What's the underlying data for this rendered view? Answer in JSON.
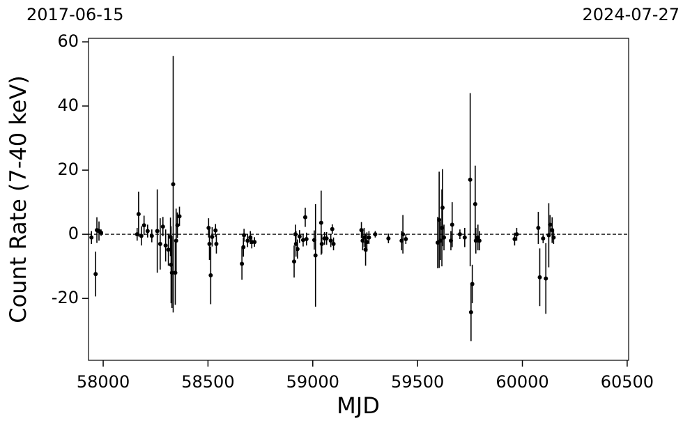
{
  "chart_data": {
    "type": "errorbar-scatter",
    "annotations": [
      "2017-06-15",
      "2024-07-27"
    ],
    "xlabel": "MJD",
    "ylabel": "Count Rate (7-40 keV)",
    "xlim": [
      57930,
      60507
    ],
    "ylim": [
      -39.3,
      61.1
    ],
    "xticks": [
      58000,
      58500,
      59000,
      59500,
      60000,
      60500
    ],
    "yticks": [
      -20,
      0,
      20,
      40,
      60
    ],
    "reference_line": 0,
    "series": [
      {
        "color": "#000000",
        "x": [
          57944,
          57964,
          57970,
          57980,
          57990,
          58169,
          58162,
          58182,
          58195,
          58212,
          58232,
          58258,
          58272,
          58285,
          58298,
          58311,
          58321,
          58324,
          58328,
          58334,
          58344,
          58348,
          58354,
          58364,
          58503,
          58507,
          58513,
          58520,
          58536,
          58540,
          58662,
          58669,
          58672,
          58689,
          58702,
          58709,
          58722,
          58911,
          58917,
          58920,
          58927,
          58937,
          58954,
          58964,
          58970,
          59007,
          59013,
          59040,
          59043,
          59056,
          59066,
          59086,
          59093,
          59099,
          59232,
          59238,
          59245,
          59252,
          59258,
          59268,
          59298,
          59361,
          59424,
          59430,
          59444,
          59596,
          59603,
          59609,
          59616,
          59619,
          59626,
          59659,
          59665,
          59702,
          59725,
          59751,
          59755,
          59761,
          59775,
          59778,
          59788,
          59795,
          59963,
          59973,
          60076,
          60083,
          60099,
          60112,
          60126,
          60132,
          60142,
          60149
        ],
        "values": [
          -1,
          -12.4,
          1.3,
          1,
          0.5,
          6.3,
          0,
          -0.5,
          2.8,
          1,
          -0.5,
          1,
          -3,
          2.4,
          -3.5,
          -4.8,
          -0.8,
          -9.5,
          -12,
          15.6,
          -12,
          -2,
          2.8,
          5.6,
          2,
          -3,
          -12.8,
          -0.8,
          1.2,
          -3,
          -9.2,
          -4,
          -0.3,
          -2,
          -1,
          -2.4,
          -2.4,
          -8.5,
          0,
          -3,
          -4.6,
          -0.7,
          -1.8,
          5.3,
          -1.5,
          -1.8,
          -6.6,
          3.6,
          -3,
          -1.3,
          -1.3,
          -2,
          1.6,
          -3,
          1.3,
          -2,
          -1,
          -4.8,
          -2.4,
          -1,
          0,
          -1.3,
          -2,
          0,
          -1.5,
          -2.6,
          4.5,
          -2,
          2,
          8.3,
          -1,
          -2,
          3,
          0,
          -1,
          17,
          -24.3,
          -15.5,
          9.4,
          -2,
          -1,
          -2,
          -1.5,
          0,
          2,
          -13.4,
          -1.3,
          -13.8,
          -0.3,
          3,
          1.3,
          -1
        ],
        "errors": [
          2,
          7,
          4,
          3,
          1,
          7,
          2,
          3,
          3,
          2,
          2,
          13,
          8,
          3,
          5,
          5,
          6,
          12,
          11,
          40,
          10,
          10,
          4,
          3,
          3,
          5,
          9,
          3,
          2,
          3,
          5,
          3,
          2,
          2,
          2,
          2,
          1.5,
          5,
          3,
          4,
          3,
          2,
          2,
          3,
          2,
          3,
          16,
          10,
          3,
          2,
          2,
          2,
          1.5,
          2,
          2.5,
          3,
          3,
          5,
          3,
          2,
          1,
          1.5,
          3,
          6,
          1.5,
          8,
          15,
          6,
          12,
          12,
          4,
          3,
          7,
          1.5,
          3,
          27,
          9,
          6,
          12,
          4,
          4,
          3,
          2,
          2,
          5,
          9,
          1.5,
          11,
          10,
          3,
          4,
          2
        ]
      }
    ]
  }
}
